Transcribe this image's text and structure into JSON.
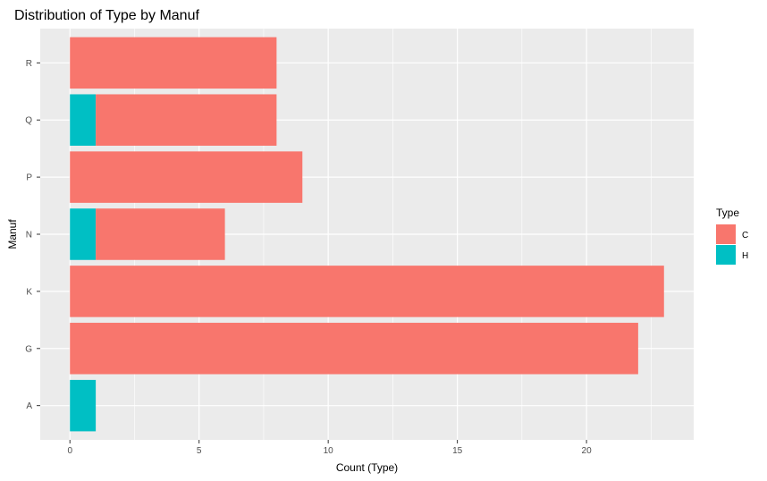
{
  "chart_data": {
    "type": "bar",
    "orientation": "horizontal",
    "stacked": true,
    "title": "Distribution of Type by Manuf",
    "xlabel": "Count (Type)",
    "ylabel": "Manuf",
    "categories": [
      "A",
      "G",
      "K",
      "N",
      "P",
      "Q",
      "R"
    ],
    "series": [
      {
        "name": "C",
        "values": [
          0,
          22,
          23,
          5,
          9,
          7,
          8
        ],
        "color": "#F8766D"
      },
      {
        "name": "H",
        "values": [
          1,
          0,
          0,
          1,
          0,
          1,
          0
        ],
        "color": "#00BFC4"
      }
    ],
    "stack_order": [
      "H",
      "C"
    ],
    "xlim": [
      -1.15,
      24.15
    ],
    "xticks": [
      0,
      5,
      10,
      15,
      20
    ],
    "grid": true,
    "panel_background": "#EBEBEB",
    "legend": {
      "title": "Type",
      "position": "right",
      "entries": [
        "C",
        "H"
      ]
    }
  }
}
